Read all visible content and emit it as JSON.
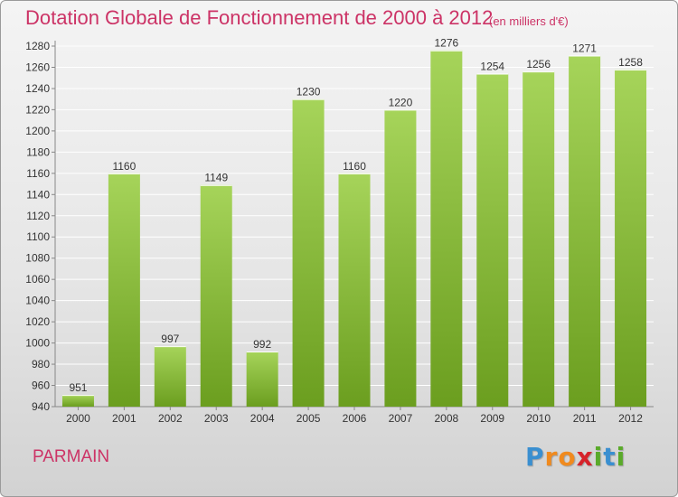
{
  "title": "Dotation Globale de Fonctionnement de 2000 à 2012",
  "subtitle": "(en milliers d'€)",
  "commune": "PARMAIN",
  "logo": {
    "letters": [
      "P",
      "r",
      "o",
      "x",
      "i",
      "t",
      "i"
    ],
    "colors": [
      "#3a8fd0",
      "#f08a1e",
      "#f08a1e",
      "#d6222a",
      "#5aaa2a",
      "#3a8fd0",
      "#5aaa2a"
    ]
  },
  "colors": {
    "title": "#cc3366",
    "bar_light": "#a6d45a",
    "bar_dark": "#6b9e1f",
    "grid": "#ffffff"
  },
  "chart_data": {
    "type": "bar",
    "title": "Dotation Globale de Fonctionnement de 2000 à 2012",
    "subtitle": "(en milliers d'€)",
    "categories": [
      "2000",
      "2001",
      "2002",
      "2003",
      "2004",
      "2005",
      "2006",
      "2007",
      "2008",
      "2009",
      "2010",
      "2011",
      "2012"
    ],
    "values": [
      951,
      1160,
      997,
      1149,
      992,
      1230,
      1160,
      1220,
      1276,
      1254,
      1256,
      1271,
      1258
    ],
    "ylim": [
      940,
      1280
    ],
    "yticks": [
      "940",
      "960",
      "980",
      "1000",
      "1020",
      "1040",
      "1060",
      "1080",
      "1100",
      "1120",
      "1140",
      "1160",
      "1180",
      "1200",
      "1220",
      "1240",
      "1260",
      "1280"
    ],
    "grid": true,
    "data_labels": true
  }
}
